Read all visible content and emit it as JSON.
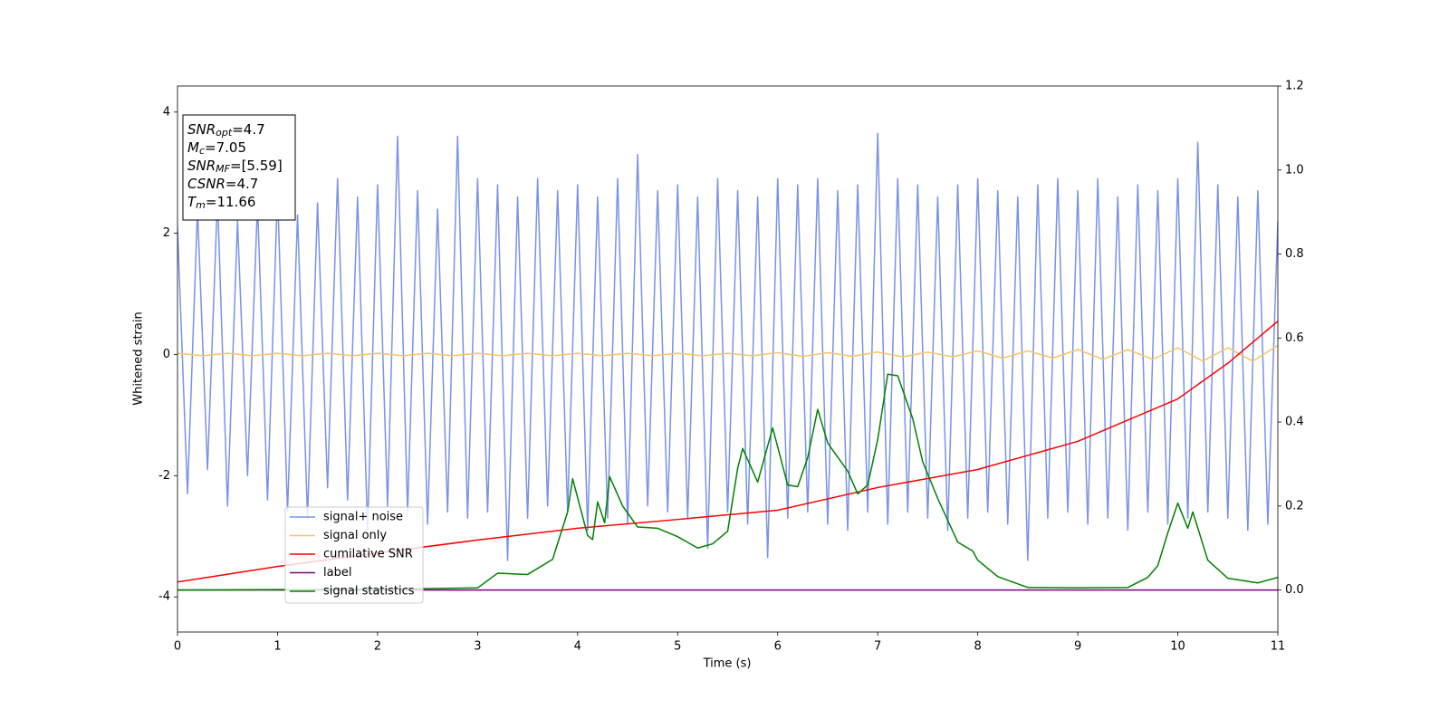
{
  "chart_data": {
    "type": "line",
    "xlabel": "Time (s)",
    "ylabel": "Whitened strain",
    "xlim": [
      0,
      11
    ],
    "ylim": [
      -4.58,
      4.43
    ],
    "y2lim": [
      -0.1,
      1.2
    ],
    "xticks": [
      0,
      1,
      2,
      3,
      4,
      5,
      6,
      7,
      8,
      9,
      10,
      11
    ],
    "yticks": [
      -4,
      -2,
      0,
      2,
      4
    ],
    "y2ticks": [
      {
        "value": 0,
        "label": "0.0"
      },
      0.2,
      0.4,
      0.6,
      0.8,
      {
        "value": 1,
        "label": "1.0"
      },
      1.2
    ],
    "annotation": [
      {
        "symbol": "SNR",
        "subscript": "opt",
        "text": "=4.7"
      },
      {
        "symbol": "M",
        "subscript": "c",
        "text": "=7.05"
      },
      {
        "symbol": "SNR",
        "subscript": "MF",
        "text": "=[5.59]"
      },
      {
        "symbol": "CSNR",
        "text": "=4.7"
      },
      {
        "symbol": "T",
        "subscript": "m",
        "text": "=11.66"
      }
    ],
    "series": [
      {
        "name": "signal+ noise",
        "color": "#7893e8",
        "x": [
          0,
          0.1,
          0.2,
          0.3,
          0.4,
          0.5,
          0.6,
          0.7,
          0.8,
          0.9,
          1,
          1.1,
          1.2,
          1.3,
          1.4,
          1.5,
          1.6,
          1.7,
          1.8,
          1.9,
          2,
          2.1,
          2.2,
          2.3,
          2.4,
          2.5,
          2.6,
          2.7,
          2.8,
          2.9,
          3,
          3.1,
          3.2,
          3.3,
          3.4,
          3.5,
          3.6,
          3.7,
          3.8,
          3.9,
          4,
          4.1,
          4.2,
          4.3,
          4.4,
          4.5,
          4.6,
          4.7,
          4.8,
          4.9,
          5,
          5.1,
          5.2,
          5.3,
          5.4,
          5.5,
          5.6,
          5.7,
          5.8,
          5.9,
          6,
          6.1,
          6.2,
          6.3,
          6.4,
          6.5,
          6.6,
          6.7,
          6.8,
          6.9,
          7,
          7.1,
          7.2,
          7.3,
          7.4,
          7.5,
          7.6,
          7.7,
          7.8,
          7.9,
          8,
          8.1,
          8.2,
          8.3,
          8.4,
          8.5,
          8.6,
          8.7,
          8.8,
          8.9,
          9,
          9.1,
          9.2,
          9.3,
          9.4,
          9.5,
          9.6,
          9.7,
          9.8,
          9.9,
          10,
          10.1,
          10.2,
          10.3,
          10.4,
          10.5,
          10.6,
          10.7,
          10.8,
          10.9,
          11
        ],
        "values": [
          2.1,
          -2.3,
          2.4,
          -1.9,
          2.6,
          -2.5,
          2.2,
          -2.0,
          2.5,
          -2.4,
          2.7,
          -2.6,
          2.3,
          -2.7,
          2.5,
          -2.2,
          2.9,
          -2.4,
          2.6,
          -2.9,
          2.8,
          -2.5,
          3.6,
          -2.6,
          2.7,
          -2.8,
          2.4,
          -2.6,
          3.6,
          -2.7,
          2.9,
          -2.6,
          2.8,
          -3.4,
          2.6,
          -2.7,
          2.9,
          -2.5,
          2.7,
          -2.6,
          2.8,
          -2.9,
          2.6,
          -2.7,
          2.9,
          -2.8,
          3.3,
          -2.5,
          2.7,
          -2.6,
          2.8,
          -2.7,
          2.6,
          -3.2,
          2.9,
          -2.6,
          2.7,
          -2.8,
          2.6,
          -3.35,
          2.9,
          -2.7,
          2.8,
          -2.6,
          2.9,
          -2.8,
          2.7,
          -2.9,
          2.8,
          -2.6,
          3.65,
          -2.8,
          2.9,
          -2.6,
          2.8,
          -2.7,
          2.6,
          -2.9,
          2.8,
          -2.7,
          2.9,
          -2.6,
          2.7,
          -2.8,
          2.6,
          -3.4,
          2.8,
          -2.7,
          2.9,
          -2.6,
          2.7,
          -2.8,
          2.9,
          -2.7,
          2.6,
          -2.9,
          2.8,
          -2.6,
          2.7,
          -2.8,
          2.9,
          -2.7,
          3.5,
          -2.6,
          2.8,
          -2.7,
          2.6,
          -2.9,
          2.7,
          -2.8,
          2.2
        ]
      },
      {
        "name": "signal only",
        "color": "#f5c46a",
        "x": [
          0,
          0.25,
          0.5,
          0.75,
          1,
          1.25,
          1.5,
          1.75,
          2,
          2.25,
          2.5,
          2.75,
          3,
          3.25,
          3.5,
          3.75,
          4,
          4.25,
          4.5,
          4.75,
          5,
          5.25,
          5.5,
          5.75,
          6,
          6.25,
          6.5,
          6.75,
          7,
          7.25,
          7.5,
          7.75,
          8,
          8.25,
          8.5,
          8.75,
          9,
          9.25,
          9.5,
          9.75,
          10,
          10.25,
          10.5,
          10.75,
          11
        ],
        "values": [
          0.02,
          -0.02,
          0.02,
          -0.02,
          0.02,
          -0.02,
          0.02,
          -0.02,
          0.02,
          -0.02,
          0.02,
          -0.02,
          0.02,
          -0.02,
          0.02,
          -0.02,
          0.02,
          -0.02,
          0.02,
          -0.02,
          0.02,
          -0.02,
          0.02,
          -0.02,
          0.03,
          -0.03,
          0.03,
          -0.03,
          0.04,
          -0.04,
          0.04,
          -0.04,
          0.06,
          -0.06,
          0.06,
          -0.06,
          0.08,
          -0.08,
          0.08,
          -0.08,
          0.11,
          -0.11,
          0.11,
          -0.11,
          0.15
        ]
      },
      {
        "name": "cumilative SNR",
        "color": "#ff0000",
        "axis": "y2",
        "x": [
          0,
          1,
          2,
          3,
          4,
          5,
          6,
          7,
          8,
          9,
          10,
          10.5,
          11
        ],
        "values": [
          0.019,
          0.056,
          0.088,
          0.119,
          0.147,
          0.168,
          0.19,
          0.244,
          0.287,
          0.354,
          0.455,
          0.54,
          0.64
        ]
      },
      {
        "name": "label",
        "color": "#800080",
        "axis": "y2",
        "x": [
          0,
          11
        ],
        "values": [
          0,
          0
        ]
      },
      {
        "name": "signal statistics",
        "color": "#008000",
        "axis": "y2",
        "x": [
          0,
          1,
          2,
          3,
          3.2,
          3.5,
          3.75,
          3.9,
          3.95,
          4.1,
          4.15,
          4.2,
          4.27,
          4.32,
          4.45,
          4.6,
          4.8,
          5,
          5.2,
          5.35,
          5.5,
          5.6,
          5.65,
          5.8,
          5.95,
          6.1,
          6.2,
          6.3,
          6.4,
          6.5,
          6.7,
          6.8,
          6.9,
          7,
          7.1,
          7.2,
          7.35,
          7.45,
          7.6,
          7.8,
          7.95,
          8,
          8.2,
          8.5,
          9,
          9.5,
          9.7,
          9.8,
          9.9,
          10,
          10.1,
          10.15,
          10.3,
          10.5,
          10.8,
          11
        ],
        "values": [
          0.0,
          0.001,
          0.002,
          0.005,
          0.04,
          0.037,
          0.073,
          0.186,
          0.265,
          0.13,
          0.12,
          0.21,
          0.16,
          0.27,
          0.2,
          0.15,
          0.147,
          0.127,
          0.1,
          0.11,
          0.14,
          0.29,
          0.337,
          0.257,
          0.386,
          0.25,
          0.246,
          0.315,
          0.43,
          0.35,
          0.283,
          0.229,
          0.25,
          0.358,
          0.514,
          0.51,
          0.408,
          0.305,
          0.218,
          0.114,
          0.093,
          0.071,
          0.032,
          0.006,
          0.005,
          0.006,
          0.03,
          0.058,
          0.136,
          0.207,
          0.147,
          0.186,
          0.071,
          0.028,
          0.017,
          0.03
        ]
      }
    ]
  }
}
